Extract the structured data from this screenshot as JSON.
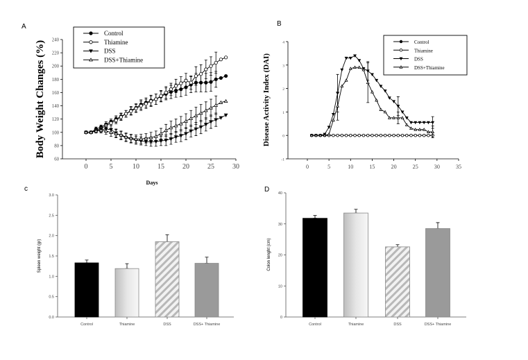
{
  "chart_data": [
    {
      "panel_label": "A",
      "type": "line",
      "xlabel": "Days",
      "ylabel": "Body Weight Changes (%)",
      "xlim": [
        -5,
        30
      ],
      "ylim": [
        60,
        240
      ],
      "xticks": [
        0,
        5,
        10,
        15,
        20,
        25,
        30
      ],
      "yticks": [
        60,
        80,
        100,
        120,
        140,
        160,
        180,
        200,
        220,
        240
      ],
      "grid": false,
      "legend_placement": "top-left",
      "x": [
        0,
        1,
        2,
        3,
        4,
        5,
        6,
        7,
        8,
        9,
        10,
        11,
        12,
        13,
        14,
        15,
        16,
        17,
        18,
        19,
        20,
        21,
        22,
        23,
        24,
        25,
        26,
        27,
        28
      ],
      "series": [
        {
          "name": "Control",
          "marker": "filled-circle",
          "values": [
            100,
            100,
            105,
            108,
            112,
            116,
            120,
            124,
            128,
            133,
            137,
            142,
            145,
            148,
            150,
            154,
            158,
            161,
            163,
            165,
            168,
            172,
            175,
            175,
            175,
            176,
            180,
            182,
            185
          ],
          "error": [
            0,
            1,
            3,
            3,
            4,
            4,
            5,
            5,
            5,
            6,
            6,
            7,
            7,
            8,
            8,
            8,
            9,
            10,
            10,
            11,
            12,
            12,
            14,
            14,
            14,
            14,
            12,
            0,
            0
          ]
        },
        {
          "name": "Thiamine",
          "marker": "open-circle",
          "values": [
            100,
            100,
            103,
            106,
            110,
            114,
            118,
            123,
            128,
            132,
            136,
            140,
            143,
            147,
            150,
            155,
            160,
            165,
            170,
            174,
            178,
            175,
            185,
            188,
            195,
            200,
            205,
            210,
            213
          ],
          "error": [
            0,
            1,
            3,
            3,
            4,
            4,
            5,
            5,
            5,
            6,
            6,
            7,
            7,
            8,
            8,
            8,
            9,
            9,
            10,
            10,
            11,
            10,
            14,
            14,
            14,
            14,
            16,
            0,
            0
          ]
        },
        {
          "name": "DSS",
          "marker": "filled-triangle-down",
          "values": [
            100,
            100,
            102,
            104,
            105,
            104,
            99,
            95,
            92,
            90,
            88,
            87,
            86,
            86,
            86,
            87,
            88,
            90,
            93,
            95,
            98,
            102,
            105,
            108,
            112,
            116,
            119,
            122,
            126
          ],
          "error": [
            0,
            1,
            3,
            4,
            5,
            6,
            6,
            6,
            6,
            6,
            6,
            6,
            6,
            7,
            7,
            7,
            8,
            8,
            8,
            9,
            9,
            9,
            10,
            10,
            10,
            10,
            10,
            0,
            0
          ]
        },
        {
          "name": "DSS+Thiamine",
          "marker": "open-triangle-up",
          "values": [
            100,
            100,
            102,
            103,
            102,
            100,
            98,
            96,
            93,
            91,
            90,
            90,
            91,
            92,
            94,
            98,
            103,
            107,
            110,
            113,
            117,
            121,
            125,
            129,
            133,
            137,
            141,
            145,
            147
          ],
          "error": [
            0,
            1,
            3,
            4,
            5,
            6,
            6,
            6,
            6,
            6,
            6,
            7,
            7,
            8,
            8,
            8,
            9,
            10,
            10,
            11,
            11,
            12,
            13,
            13,
            13,
            13,
            14,
            0,
            0
          ]
        }
      ]
    },
    {
      "panel_label": "B",
      "type": "line",
      "xlabel": "",
      "ylabel": "Disease Activity Index (DAI)",
      "xlim": [
        -5,
        35
      ],
      "ylim": [
        -1,
        4
      ],
      "xticks": [
        0,
        5,
        10,
        15,
        20,
        25,
        30,
        35
      ],
      "yticks": [
        -1,
        0,
        1,
        2,
        3,
        4
      ],
      "grid": false,
      "legend_placement": "top-right",
      "x": [
        1,
        2,
        3,
        4,
        5,
        6,
        7,
        8,
        9,
        10,
        11,
        12,
        13,
        14,
        15,
        16,
        17,
        18,
        19,
        20,
        21,
        22,
        23,
        24,
        25,
        26,
        27,
        28,
        29
      ],
      "series": [
        {
          "name": "Control",
          "marker": "filled-circle",
          "values": [
            0,
            0,
            0,
            0,
            0,
            0,
            0,
            0,
            0,
            0,
            0,
            0,
            0,
            0,
            0,
            0,
            0,
            0,
            0,
            0,
            0,
            0,
            0,
            0,
            0,
            0,
            0,
            0,
            0
          ]
        },
        {
          "name": "Thiamine",
          "marker": "open-circle",
          "values": [
            0,
            0,
            0,
            0,
            0,
            0,
            0,
            0,
            0,
            0,
            0,
            0,
            0,
            0,
            0,
            0,
            0,
            0,
            0,
            0,
            0,
            0,
            0,
            0,
            0,
            0,
            0,
            0,
            0
          ]
        },
        {
          "name": "DSS",
          "marker": "filled-triangle-down",
          "values": [
            0,
            0,
            0,
            0.05,
            0.35,
            0.9,
            1.8,
            2.8,
            3.3,
            3.3,
            3.4,
            3.2,
            2.85,
            2.75,
            2.6,
            2.35,
            2.1,
            1.9,
            1.6,
            1.45,
            1.25,
            1.0,
            0.75,
            0.55,
            0.55,
            0.55,
            0.55,
            0.55,
            0.55
          ],
          "error_points": [
            {
              "x": 7,
              "err": 0.8
            },
            {
              "x": 14,
              "err": 0.4
            },
            {
              "x": 21,
              "err": 0.4
            },
            {
              "x": 29,
              "err": 0.25
            }
          ]
        },
        {
          "name": "DSS+Thiamine",
          "marker": "open-triangle-up",
          "values": [
            0,
            0,
            0,
            0,
            0.05,
            0.65,
            1.25,
            2.1,
            2.35,
            2.85,
            2.9,
            2.9,
            2.8,
            2.25,
            1.85,
            1.5,
            1.1,
            1.0,
            0.75,
            0.75,
            0.75,
            0.75,
            0.45,
            0.3,
            0.25,
            0.25,
            0.25,
            0.15,
            0.15
          ],
          "error_points": [
            {
              "x": 7,
              "err": 0.6
            },
            {
              "x": 14,
              "err": 0.85
            },
            {
              "x": 21,
              "err": 0.25
            },
            {
              "x": 29,
              "err": 0.25
            }
          ]
        }
      ]
    },
    {
      "panel_label": "c",
      "type": "bar",
      "ylabel": "Spleen weight (gr)",
      "ylim": [
        0,
        3.0
      ],
      "yticks": [
        "0.0",
        "0.5",
        "1.0",
        "1.5",
        "2.0",
        "2.5",
        "3.0"
      ],
      "categories": [
        "Control",
        "Thiamine",
        "DSS",
        "DSS+ Thiamine"
      ],
      "values": [
        1.33,
        1.19,
        1.85,
        1.32
      ],
      "error": [
        0.07,
        0.12,
        0.17,
        0.15
      ],
      "fills": [
        "solid-black",
        "light-gradient",
        "diagonal-hatch",
        "solid-gray"
      ]
    },
    {
      "panel_label": "D",
      "type": "bar",
      "ylabel": "Colon lenght (cm)",
      "ylim": [
        0,
        40
      ],
      "yticks": [
        "0",
        "10",
        "20",
        "30",
        "40"
      ],
      "categories": [
        "Control",
        "Thiamine",
        "DSS",
        "DSS+ Thiamine"
      ],
      "values": [
        31.8,
        33.5,
        22.6,
        28.5
      ],
      "error": [
        0.9,
        1.2,
        0.7,
        1.9
      ],
      "fills": [
        "solid-black",
        "light-gradient",
        "diagonal-hatch",
        "solid-gray"
      ]
    }
  ],
  "colors": {
    "ink": "#000000",
    "gray_bar": "#9a9a9a",
    "hatch": "#bdbdbd"
  }
}
